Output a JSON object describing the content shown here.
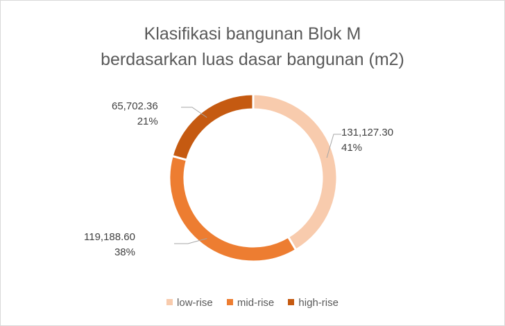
{
  "chart_data": {
    "type": "pie",
    "variant": "donut",
    "title": [
      "Klasifikasi bangunan Blok M",
      "berdasarkan luas dasar bangunan (m2)"
    ],
    "categories": [
      "low-rise",
      "mid-rise",
      "high-rise"
    ],
    "values": [
      131127.3,
      119188.6,
      65702.36
    ],
    "value_labels": [
      "131,127.30",
      "119,188.60",
      "65,702.36"
    ],
    "percent_labels": [
      "41%",
      "38%",
      "21%"
    ],
    "colors": [
      "#f8cbad",
      "#ed7d31",
      "#c55a11"
    ],
    "legend_position": "bottom"
  }
}
